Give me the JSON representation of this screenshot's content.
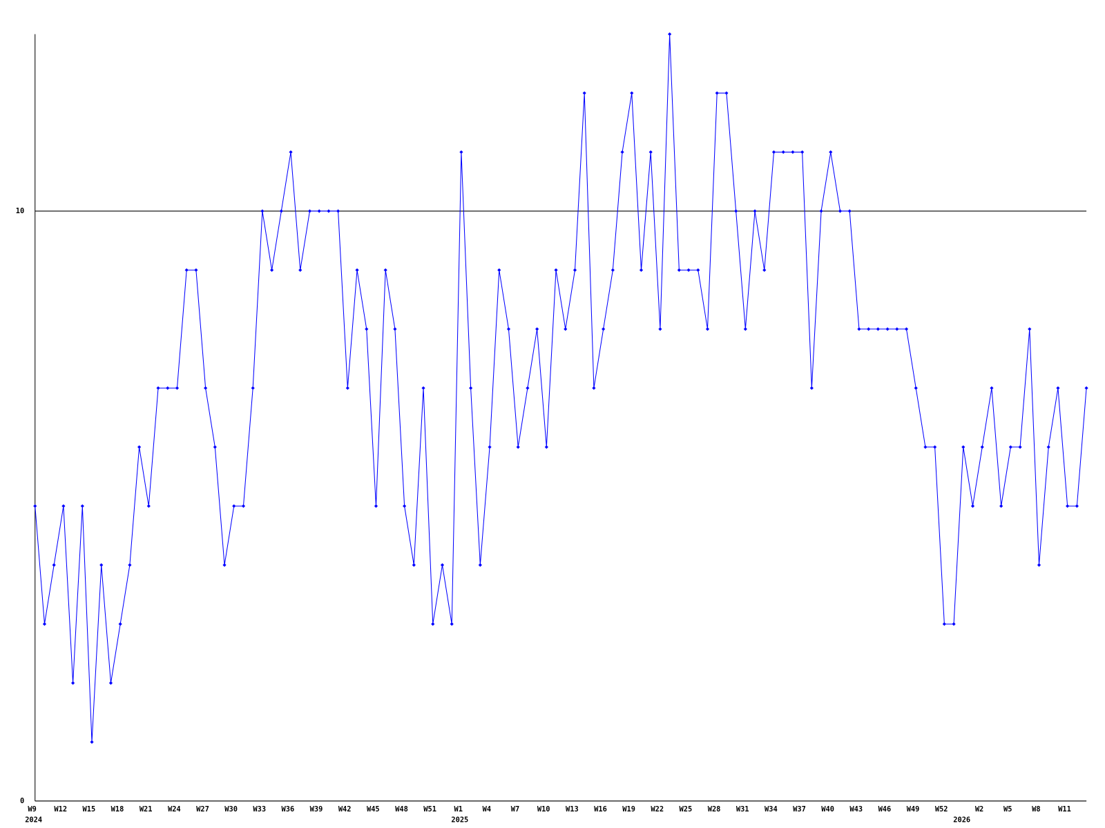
{
  "chart_data": {
    "type": "line",
    "categories": [
      "W9",
      null,
      null,
      "W12",
      null,
      null,
      "W15",
      null,
      null,
      "W18",
      null,
      null,
      "W21",
      null,
      null,
      "W24",
      null,
      null,
      "W27",
      null,
      null,
      "W30",
      null,
      null,
      "W33",
      null,
      null,
      "W36",
      null,
      null,
      "W39",
      null,
      null,
      "W42",
      null,
      null,
      "W45",
      null,
      null,
      "W48",
      null,
      null,
      "W51",
      null,
      null,
      "W1",
      null,
      null,
      "W4",
      null,
      null,
      "W7",
      null,
      null,
      "W10",
      null,
      null,
      "W13",
      null,
      null,
      "W16",
      null,
      null,
      "W19",
      null,
      null,
      "W22",
      null,
      null,
      "W25",
      null,
      null,
      "W28",
      null,
      null,
      "W31",
      null,
      null,
      "W34",
      null,
      null,
      "W37",
      null,
      null,
      "W40",
      null,
      null,
      "W43",
      null,
      null,
      "W46",
      null,
      null,
      "W49",
      null,
      null,
      "W52",
      null,
      null,
      null,
      "W2",
      null,
      null,
      "W5",
      null,
      null,
      "W8",
      null,
      null,
      "W11",
      null,
      null
    ],
    "years": [
      "2024",
      null,
      null,
      null,
      null,
      null,
      null,
      null,
      null,
      null,
      null,
      null,
      null,
      null,
      null,
      null,
      null,
      null,
      null,
      null,
      null,
      null,
      null,
      null,
      null,
      null,
      null,
      null,
      null,
      null,
      null,
      null,
      null,
      null,
      null,
      null,
      null,
      null,
      null,
      null,
      null,
      null,
      null,
      null,
      null,
      "2025",
      null,
      null,
      null,
      null,
      null,
      null,
      null,
      null,
      null,
      null,
      null,
      null,
      null,
      null,
      null,
      null,
      null,
      null,
      null,
      null,
      null,
      null,
      null,
      null,
      null,
      null,
      null,
      null,
      null,
      null,
      null,
      null,
      null,
      null,
      null,
      null,
      null,
      null,
      null,
      null,
      null,
      null,
      null,
      null,
      null,
      null,
      null,
      null,
      null,
      null,
      null,
      null,
      "2026",
      null,
      null,
      null,
      null,
      null,
      null,
      null,
      null,
      null,
      null,
      null,
      null,
      null
    ],
    "series": [
      {
        "color": "#0000ff",
        "values": [
          5,
          3,
          4,
          5,
          2,
          5,
          1,
          4,
          2,
          3,
          4,
          6,
          5,
          7,
          7,
          7,
          9,
          9,
          7,
          6,
          4,
          5,
          5,
          7,
          10,
          9,
          10,
          11,
          9,
          10,
          10,
          10,
          10,
          7,
          9,
          8,
          5,
          9,
          8,
          5,
          4,
          7,
          3,
          4,
          3,
          11,
          7,
          4,
          6,
          9,
          8,
          6,
          7,
          8,
          6,
          9,
          8,
          9,
          12,
          7,
          8,
          9,
          11,
          12,
          9,
          11,
          8,
          13,
          9,
          9,
          9,
          8,
          12,
          12,
          10,
          8,
          10,
          9,
          11,
          11,
          11,
          11,
          7,
          10,
          11,
          10,
          10,
          8,
          8,
          8,
          8,
          8,
          8,
          7,
          6,
          6,
          3,
          3,
          6,
          5,
          6,
          7,
          5,
          6,
          6,
          8,
          4,
          6,
          7,
          5,
          5,
          7
        ]
      }
    ],
    "ylim": [
      0,
      13
    ],
    "yticks": [
      0,
      10
    ],
    "grid": true
  }
}
